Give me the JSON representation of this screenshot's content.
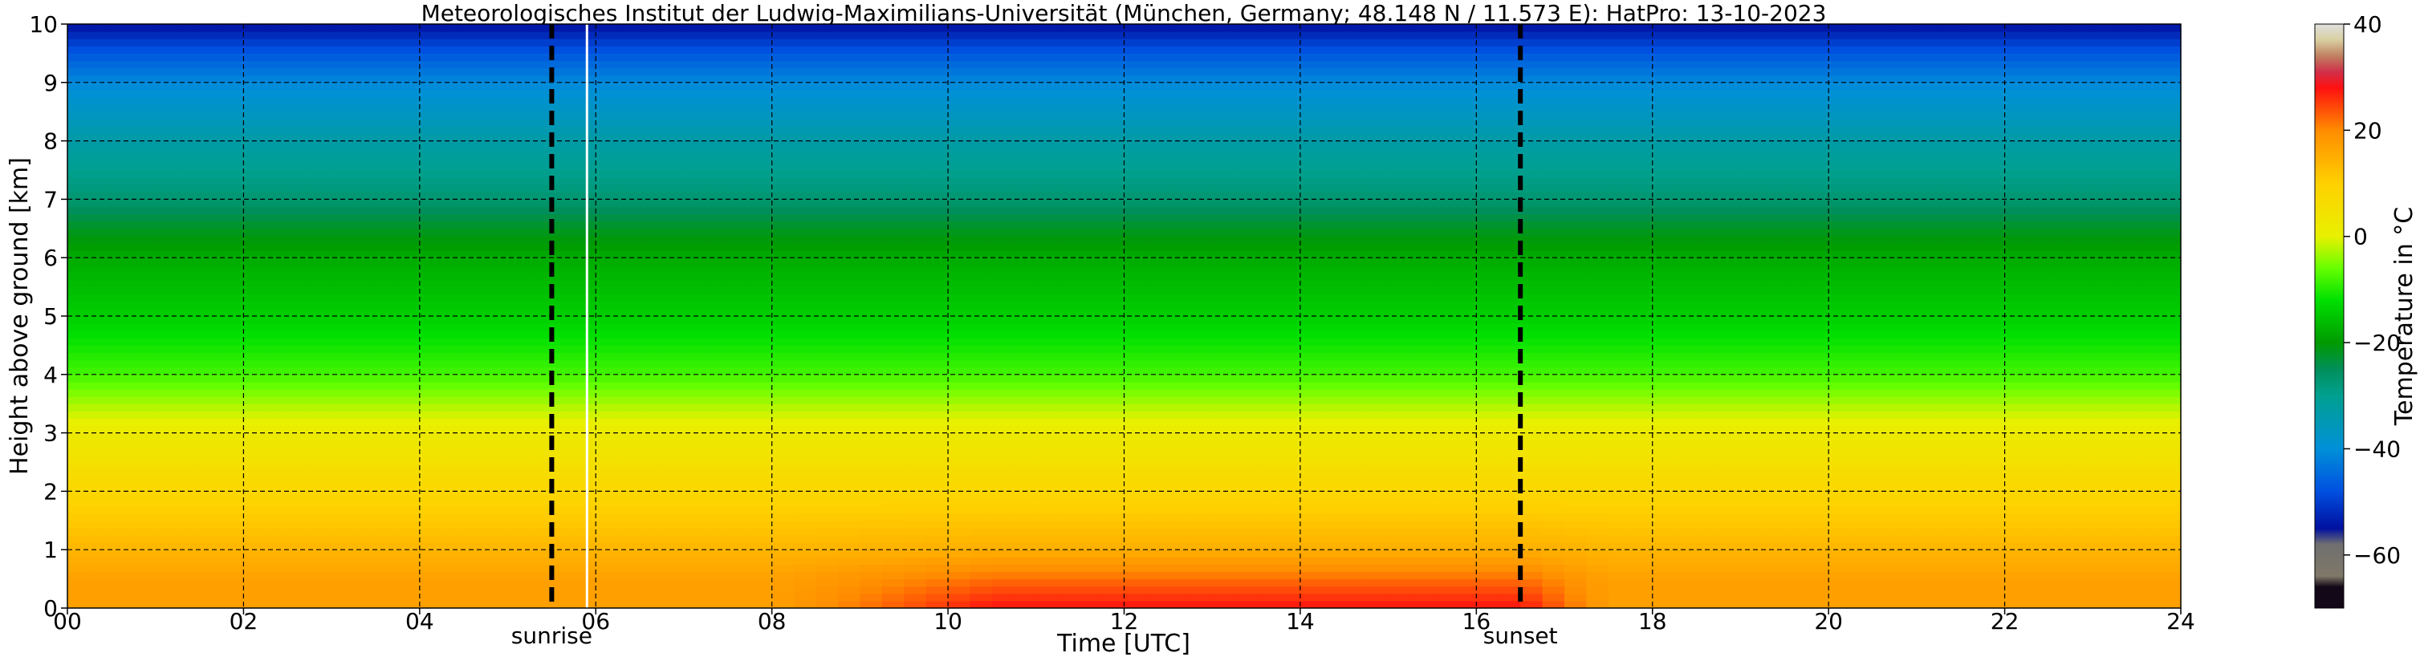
{
  "chart_data": {
    "type": "heatmap",
    "title": "Meteorologisches Institut der Ludwig-Maximilians-Universität (München, Germany; 48.148 N / 11.573 E):    HatPro: 13-10-2023",
    "xlabel": "Time [UTC]",
    "ylabel": "Height above ground [km]",
    "xlim": [
      0,
      24
    ],
    "ylim": [
      0,
      10
    ],
    "x_ticks": [
      "00",
      "02",
      "04",
      "06",
      "08",
      "10",
      "12",
      "14",
      "16",
      "18",
      "20",
      "22",
      "24"
    ],
    "y_ticks": [
      "0",
      "1",
      "2",
      "3",
      "4",
      "5",
      "6",
      "7",
      "8",
      "9",
      "10"
    ],
    "grid": true,
    "colorbar": {
      "label": "Temperature in °C",
      "range": [
        -70,
        40
      ],
      "ticks": [
        "40",
        "20",
        "0",
        "−20",
        "−40",
        "−60"
      ],
      "colors": [
        {
          "value": 40,
          "color": "#e0e0e0"
        },
        {
          "value": 37,
          "color": "#d8cfa0"
        },
        {
          "value": 34,
          "color": "#c08060"
        },
        {
          "value": 31,
          "color": "#d0304a"
        },
        {
          "value": 28,
          "color": "#ff1010"
        },
        {
          "value": 20,
          "color": "#ff8c00"
        },
        {
          "value": 10,
          "color": "#ffd000"
        },
        {
          "value": 0,
          "color": "#e8f000"
        },
        {
          "value": -6,
          "color": "#66ff00"
        },
        {
          "value": -12,
          "color": "#00e000"
        },
        {
          "value": -20,
          "color": "#009a00"
        },
        {
          "value": -25,
          "color": "#008f5a"
        },
        {
          "value": -30,
          "color": "#00a090"
        },
        {
          "value": -40,
          "color": "#0090d8"
        },
        {
          "value": -48,
          "color": "#0050e0"
        },
        {
          "value": -55,
          "color": "#0010a0"
        },
        {
          "value": -58,
          "color": "#707070"
        },
        {
          "value": -64,
          "color": "#807868"
        },
        {
          "value": -66,
          "color": "#120818"
        },
        {
          "value": -70,
          "color": "#120818"
        }
      ]
    },
    "vertical_markers": [
      {
        "x": 5.5,
        "label": "sunrise",
        "style": "dashed",
        "color": "#000000"
      },
      {
        "x": 16.5,
        "label": "sunset",
        "style": "dashed",
        "color": "#000000"
      },
      {
        "x": 5.9,
        "label": "",
        "style": "solid",
        "color": "#ffffff"
      }
    ],
    "temperature_profile_km_to_C": [
      {
        "height": 0.0,
        "t_night": 17,
        "t_day": 28
      },
      {
        "height": 0.5,
        "t_night": 17,
        "t_day": 22
      },
      {
        "height": 1.0,
        "t_night": 14,
        "t_day": 15
      },
      {
        "height": 2.0,
        "t_night": 8,
        "t_day": 8
      },
      {
        "height": 3.0,
        "t_night": 2,
        "t_day": 2
      },
      {
        "height": 3.5,
        "t_night": -3,
        "t_day": -3
      },
      {
        "height": 4.0,
        "t_night": -8,
        "t_day": -8
      },
      {
        "height": 5.0,
        "t_night": -14,
        "t_day": -14
      },
      {
        "height": 6.0,
        "t_night": -18,
        "t_day": -18
      },
      {
        "height": 6.5,
        "t_night": -22,
        "t_day": -22
      },
      {
        "height": 7.0,
        "t_night": -27,
        "t_day": -27
      },
      {
        "height": 8.0,
        "t_night": -33,
        "t_day": -33
      },
      {
        "height": 9.0,
        "t_night": -41,
        "t_day": -41
      },
      {
        "height": 9.5,
        "t_night": -47,
        "t_day": -47
      },
      {
        "height": 10.0,
        "t_night": -55,
        "t_day": -55
      }
    ],
    "daytime_warm_period_utc": [
      10.5,
      16.5
    ]
  }
}
